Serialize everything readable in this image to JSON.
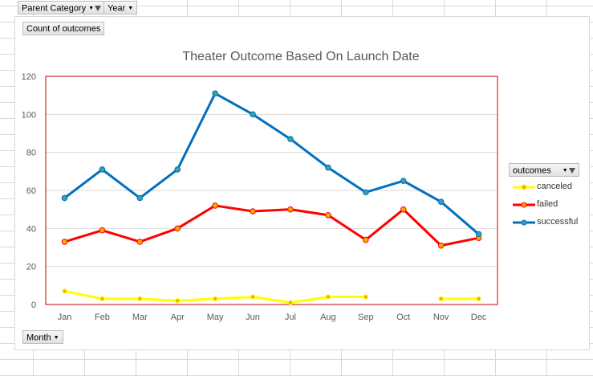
{
  "filters": {
    "parent_category": "Parent Category",
    "year": "Year",
    "values_field": "Count of outcomes",
    "axis_field": "Month"
  },
  "legend": {
    "title": "outcomes"
  },
  "colors": {
    "canceled": "#ffff00",
    "failed": "#ff0000",
    "successful": "#0070c0",
    "marker_fill": "#f0b000",
    "marker_fill_successful": "#3aa0a0",
    "plot_border": "#c00000"
  },
  "chart_data": {
    "type": "line",
    "title": "Theater Outcome Based On Launch Date",
    "xlabel": "",
    "ylabel": "",
    "categories": [
      "Jan",
      "Feb",
      "Mar",
      "Apr",
      "May",
      "Jun",
      "Jul",
      "Aug",
      "Sep",
      "Oct",
      "Nov",
      "Dec"
    ],
    "ylim": [
      0,
      120
    ],
    "yticks": [
      0,
      20,
      40,
      60,
      80,
      100,
      120
    ],
    "grid": true,
    "legend_position": "right",
    "series": [
      {
        "name": "canceled",
        "values": [
          7,
          3,
          3,
          2,
          3,
          4,
          1,
          4,
          4,
          null,
          3,
          3
        ]
      },
      {
        "name": "failed",
        "values": [
          33,
          39,
          33,
          40,
          52,
          49,
          50,
          47,
          34,
          50,
          31,
          35
        ]
      },
      {
        "name": "successful",
        "values": [
          56,
          71,
          56,
          71,
          111,
          100,
          87,
          72,
          59,
          65,
          54,
          37
        ]
      }
    ]
  }
}
